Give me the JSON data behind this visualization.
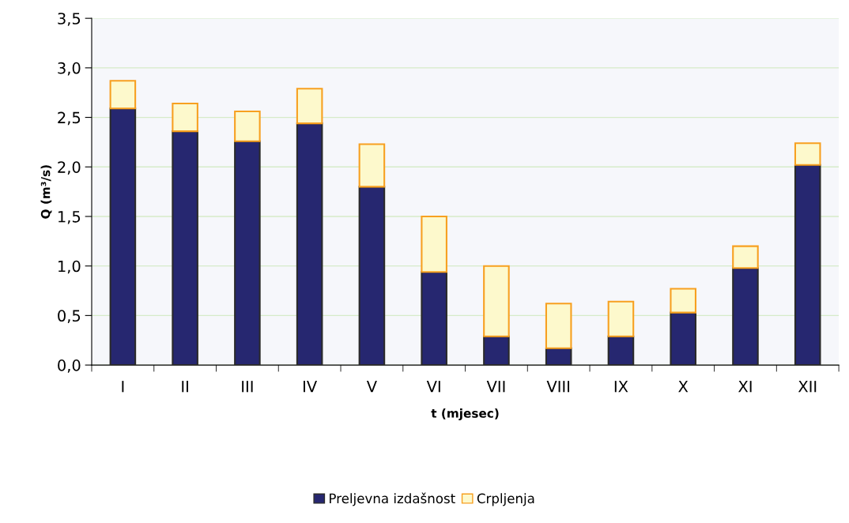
{
  "chart_data": {
    "type": "bar",
    "stacked": true,
    "xlabel": "t (mjesec)",
    "ylabel": "Q (m³/s)",
    "categories": [
      "I",
      "II",
      "III",
      "IV",
      "V",
      "VI",
      "VII",
      "VIII",
      "IX",
      "X",
      "XI",
      "XII"
    ],
    "series": [
      {
        "name": "Preljevna izdašnost",
        "color": "#262770",
        "values": [
          2.59,
          2.36,
          2.26,
          2.44,
          1.8,
          0.94,
          0.29,
          0.17,
          0.29,
          0.53,
          0.98,
          2.02
        ]
      },
      {
        "name": "Crpljenja",
        "color": "#fdf9cc",
        "values": [
          0.28,
          0.28,
          0.3,
          0.35,
          0.43,
          0.56,
          0.71,
          0.45,
          0.35,
          0.24,
          0.22,
          0.22
        ]
      }
    ],
    "ylim": [
      0,
      3.5
    ],
    "yticks": [
      {
        "value": 0,
        "label": "0,0"
      },
      {
        "value": 0.5,
        "label": "0,5"
      },
      {
        "value": 1,
        "label": "1,0"
      },
      {
        "value": 1.5,
        "label": "1,5"
      },
      {
        "value": 2,
        "label": "2,0"
      },
      {
        "value": 2.5,
        "label": "2,5"
      },
      {
        "value": 3,
        "label": "3,0"
      },
      {
        "value": 3.5,
        "label": "3,5"
      }
    ],
    "grid": "y",
    "legend": "bottom"
  }
}
